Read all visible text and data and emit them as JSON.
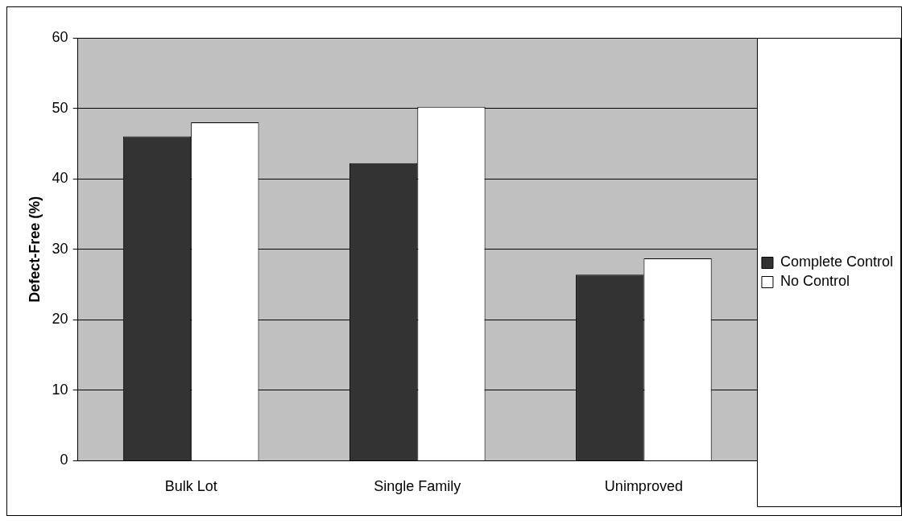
{
  "chart_data": {
    "type": "bar",
    "ylabel": "Defect-Free (%)",
    "categories": [
      "Bulk Lot",
      "Single Family",
      "Unimproved"
    ],
    "series": [
      {
        "name": "Complete Control",
        "color": "#333333",
        "values": [
          46.0,
          42.2,
          26.4
        ]
      },
      {
        "name": "No Control",
        "color": "#ffffff",
        "values": [
          48.0,
          50.2,
          28.7
        ]
      }
    ],
    "ylim": [
      0,
      60
    ],
    "yticks": [
      0,
      10,
      20,
      30,
      40,
      50,
      60
    ],
    "grid": "y",
    "legend": "right"
  }
}
